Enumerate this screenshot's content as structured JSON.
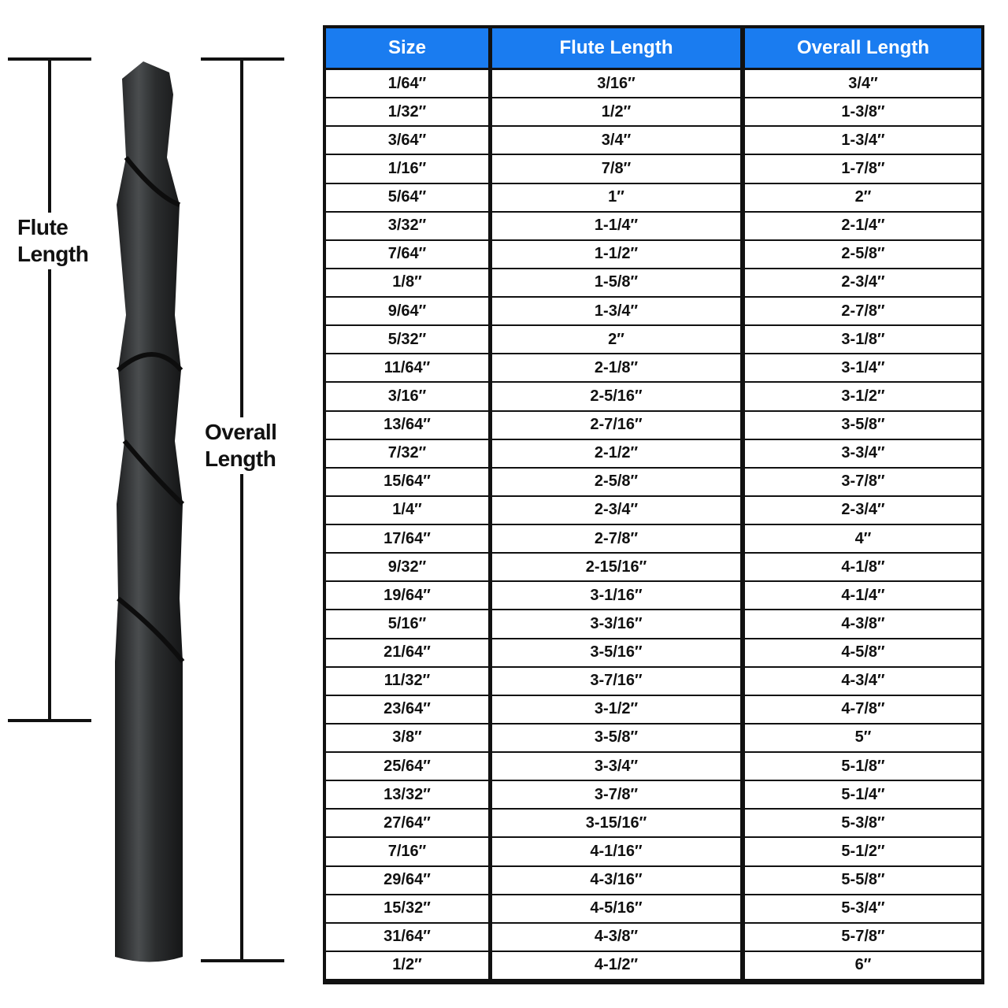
{
  "labels": {
    "flute": [
      "Flute",
      "Length"
    ],
    "overall": [
      "Overall",
      "Length"
    ]
  },
  "colors": {
    "header": "#1a7cf0",
    "drill": "#2b2d2e"
  },
  "table": {
    "headers": [
      "Size",
      "Flute Length",
      "Overall Length"
    ],
    "rows": [
      [
        "1/64″",
        "3/16″",
        "3/4″"
      ],
      [
        "1/32″",
        "1/2″",
        "1-3/8″"
      ],
      [
        "3/64″",
        "3/4″",
        "1-3/4″"
      ],
      [
        "1/16″",
        "7/8″",
        "1-7/8″"
      ],
      [
        "5/64″",
        "1″",
        "2″"
      ],
      [
        "3/32″",
        "1-1/4″",
        "2-1/4″"
      ],
      [
        "7/64″",
        "1-1/2″",
        "2-5/8″"
      ],
      [
        "1/8″",
        "1-5/8″",
        "2-3/4″"
      ],
      [
        "9/64″",
        "1-3/4″",
        "2-7/8″"
      ],
      [
        "5/32″",
        "2″",
        "3-1/8″"
      ],
      [
        "11/64″",
        "2-1/8″",
        "3-1/4″"
      ],
      [
        "3/16″",
        "2-5/16″",
        "3-1/2″"
      ],
      [
        "13/64″",
        "2-7/16″",
        "3-5/8″"
      ],
      [
        "7/32″",
        "2-1/2″",
        "3-3/4″"
      ],
      [
        "15/64″",
        "2-5/8″",
        "3-7/8″"
      ],
      [
        "1/4″",
        "2-3/4″",
        "2-3/4″"
      ],
      [
        "17/64″",
        "2-7/8″",
        "4″"
      ],
      [
        "9/32″",
        "2-15/16″",
        "4-1/8″"
      ],
      [
        "19/64″",
        "3-1/16″",
        "4-1/4″"
      ],
      [
        "5/16″",
        "3-3/16″",
        "4-3/8″"
      ],
      [
        "21/64″",
        "3-5/16″",
        "4-5/8″"
      ],
      [
        "11/32″",
        "3-7/16″",
        "4-3/4″"
      ],
      [
        "23/64″",
        "3-1/2″",
        "4-7/8″"
      ],
      [
        "3/8″",
        "3-5/8″",
        "5″"
      ],
      [
        "25/64″",
        "3-3/4″",
        "5-1/8″"
      ],
      [
        "13/32″",
        "3-7/8″",
        "5-1/4″"
      ],
      [
        "27/64″",
        "3-15/16″",
        "5-3/8″"
      ],
      [
        "7/16″",
        "4-1/16″",
        "5-1/2″"
      ],
      [
        "29/64″",
        "4-3/16″",
        "5-5/8″"
      ],
      [
        "15/32″",
        "4-5/16″",
        "5-3/4″"
      ],
      [
        "31/64″",
        "4-3/8″",
        "5-7/8″"
      ],
      [
        "1/2″",
        "4-1/2″",
        "6″"
      ]
    ]
  }
}
